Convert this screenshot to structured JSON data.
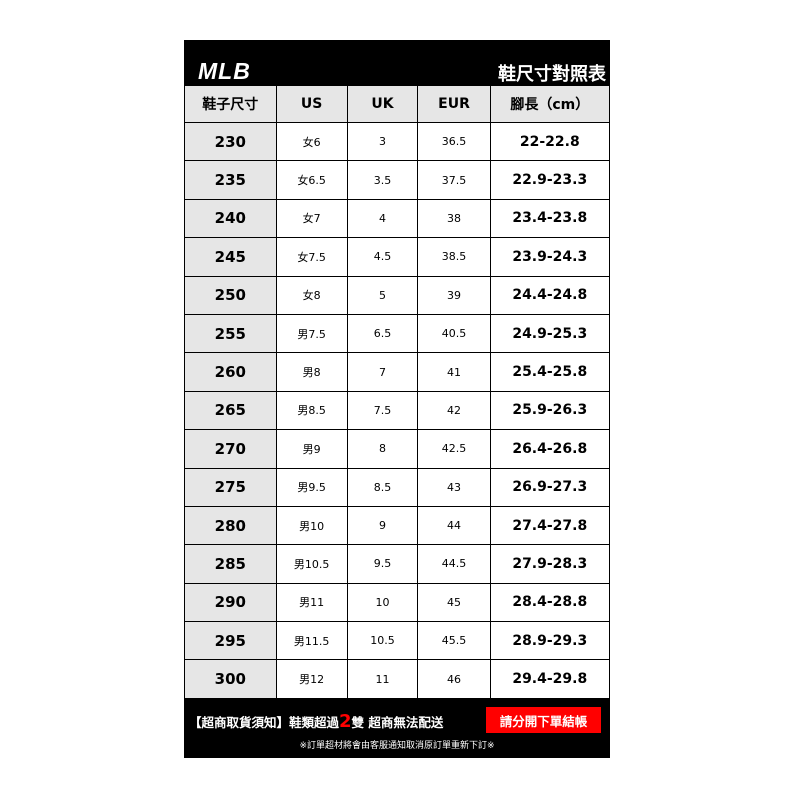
{
  "header": {
    "logo": "MLB",
    "title": "鞋尺寸對照表"
  },
  "columns": [
    "鞋子尺寸",
    "US",
    "UK",
    "EUR",
    "腳長（cm）"
  ],
  "rows": [
    [
      "230",
      "女6",
      "3",
      "36.5",
      "22-22.8"
    ],
    [
      "235",
      "女6.5",
      "3.5",
      "37.5",
      "22.9-23.3"
    ],
    [
      "240",
      "女7",
      "4",
      "38",
      "23.4-23.8"
    ],
    [
      "245",
      "女7.5",
      "4.5",
      "38.5",
      "23.9-24.3"
    ],
    [
      "250",
      "女8",
      "5",
      "39",
      "24.4-24.8"
    ],
    [
      "255",
      "男7.5",
      "6.5",
      "40.5",
      "24.9-25.3"
    ],
    [
      "260",
      "男8",
      "7",
      "41",
      "25.4-25.8"
    ],
    [
      "265",
      "男8.5",
      "7.5",
      "42",
      "25.9-26.3"
    ],
    [
      "270",
      "男9",
      "8",
      "42.5",
      "26.4-26.8"
    ],
    [
      "275",
      "男9.5",
      "8.5",
      "43",
      "26.9-27.3"
    ],
    [
      "280",
      "男10",
      "9",
      "44",
      "27.4-27.8"
    ],
    [
      "285",
      "男10.5",
      "9.5",
      "44.5",
      "27.9-28.3"
    ],
    [
      "290",
      "男11",
      "10",
      "45",
      "28.4-28.8"
    ],
    [
      "295",
      "男11.5",
      "10.5",
      "45.5",
      "28.9-29.3"
    ],
    [
      "300",
      "男12",
      "11",
      "46",
      "29.4-29.8"
    ]
  ],
  "footer": {
    "notice_a": "【超商取貨須知】鞋類超過",
    "notice_num": "2",
    "notice_b": "雙 超商無法配送",
    "button": "請分開下單結帳",
    "note": "※訂單超材將會由客服通知取消原訂單重新下訂※"
  },
  "colors": {
    "accent": "#ff0000",
    "header_bg": "#e6e6e6"
  }
}
